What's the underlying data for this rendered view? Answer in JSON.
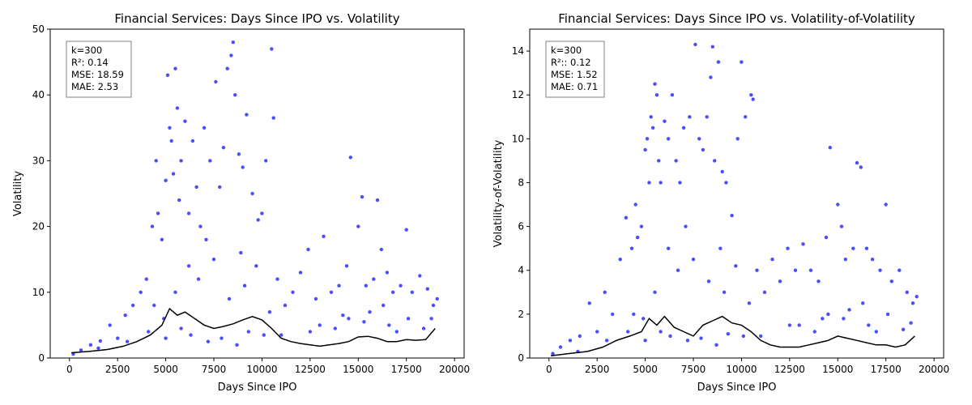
{
  "chart_data": [
    {
      "type": "scatter",
      "title": "Financial Services: Days Since IPO vs. Volatility",
      "xlabel": "Days Since IPO",
      "ylabel": "Volatility",
      "xlim": [
        -1000,
        20500
      ],
      "ylim": [
        0,
        50
      ],
      "xticks": [
        0,
        2500,
        5000,
        7500,
        10000,
        12500,
        15000,
        17500,
        20000
      ],
      "xtick_labels": [
        "0",
        "2500",
        "5000",
        "7500",
        "10000",
        "12500",
        "15000",
        "17500",
        "20000"
      ],
      "yticks": [
        0,
        10,
        20,
        30,
        40,
        50
      ],
      "ytick_labels": [
        "0",
        "10",
        "20",
        "30",
        "40",
        "50"
      ],
      "grid": false,
      "point_color": "#0000ff",
      "trend_color": "#000000",
      "stats_box": [
        "k=300",
        "R²: 0.14",
        "MSE: 18.59",
        "MAE: 2.53"
      ],
      "trend": {
        "x": [
          100,
          1000,
          2000,
          2800,
          3500,
          4200,
          4800,
          5200,
          5600,
          6000,
          6500,
          7000,
          7500,
          8000,
          8500,
          9000,
          9500,
          10000,
          10500,
          11000,
          11500,
          12000,
          12500,
          13000,
          13500,
          14000,
          14500,
          15000,
          15500,
          16000,
          16500,
          17000,
          17500,
          18000,
          18500,
          19000
        ],
        "y": [
          0.8,
          1.0,
          1.3,
          1.8,
          2.5,
          3.5,
          5.0,
          7.5,
          6.5,
          7.0,
          6.0,
          5.0,
          4.5,
          4.8,
          5.2,
          5.8,
          6.3,
          5.8,
          4.5,
          3.0,
          2.5,
          2.2,
          2.0,
          1.8,
          2.0,
          2.2,
          2.5,
          3.2,
          3.3,
          3.0,
          2.5,
          2.5,
          2.8,
          2.7,
          2.8,
          4.5
        ]
      },
      "points": {
        "x": [
          200,
          600,
          1100,
          1600,
          2100,
          2500,
          2900,
          3300,
          3700,
          4000,
          4300,
          4500,
          4600,
          4800,
          5000,
          5100,
          5200,
          5300,
          5400,
          5500,
          5600,
          5700,
          5800,
          6000,
          6200,
          6400,
          6600,
          6800,
          7000,
          7300,
          7600,
          7800,
          8000,
          8200,
          8400,
          8500,
          8600,
          8800,
          9000,
          9200,
          9500,
          9800,
          10000,
          10200,
          10500,
          10600,
          10800,
          11200,
          11600,
          12000,
          12400,
          12800,
          13200,
          13600,
          14000,
          14400,
          14600,
          15000,
          15200,
          15400,
          15800,
          16000,
          16200,
          16500,
          16800,
          17200,
          17500,
          17800,
          18200,
          18600,
          18900,
          19100,
          4400,
          5500,
          6200,
          7500,
          8300,
          9100,
          10400,
          12500,
          14500,
          15300,
          16300,
          17600,
          1500,
          3000,
          4100,
          4900,
          6700,
          7100,
          8900,
          9700,
          11000,
          13000,
          13800,
          14200,
          15600,
          16600,
          17000,
          18400,
          18800,
          5000,
          5800,
          6300,
          7200,
          7900,
          8700,
          9300,
          10100
        ],
        "y": [
          0.6,
          1.2,
          2.0,
          2.6,
          5.0,
          3.0,
          6.5,
          8.0,
          10.0,
          12.0,
          20.0,
          30.0,
          22.0,
          18.0,
          27.0,
          43.0,
          35.0,
          33.0,
          28.0,
          44.0,
          38.0,
          24.0,
          30.0,
          36.0,
          22.0,
          33.0,
          26.0,
          20.0,
          35.0,
          30.0,
          42.0,
          26.0,
          32.0,
          44.0,
          46.0,
          48.0,
          40.0,
          31.0,
          29.0,
          37.0,
          25.0,
          21.0,
          22.0,
          30.0,
          47.0,
          36.5,
          12.0,
          8.0,
          10.0,
          13.0,
          16.5,
          9.0,
          18.5,
          10.0,
          11.0,
          14.0,
          30.5,
          20.0,
          24.5,
          11.0,
          12.0,
          24.0,
          16.5,
          13.0,
          10.0,
          11.0,
          19.5,
          10.0,
          12.5,
          10.5,
          8.0,
          9.0,
          8.0,
          10.0,
          14.0,
          15.0,
          9.0,
          11.0,
          7.0,
          4.0,
          6.0,
          5.5,
          8.0,
          6.0,
          1.5,
          2.5,
          4.0,
          6.0,
          12.0,
          18.0,
          16.0,
          14.0,
          3.5,
          5.0,
          4.5,
          6.5,
          7.0,
          5.0,
          4.0,
          4.5,
          6.0,
          3.0,
          4.5,
          3.5,
          2.5,
          3.0,
          2.0,
          4.0,
          3.5
        ]
      }
    },
    {
      "type": "scatter",
      "title": "Financial Services: Days Since IPO vs. Volatility-of-Volatility",
      "xlabel": "Days Since IPO",
      "ylabel": "Volatility-of-Volatility",
      "xlim": [
        -1000,
        20500
      ],
      "ylim": [
        0,
        15
      ],
      "xticks": [
        0,
        2500,
        5000,
        7500,
        10000,
        12500,
        15000,
        17500,
        20000
      ],
      "xtick_labels": [
        "0",
        "2500",
        "5000",
        "7500",
        "10000",
        "12500",
        "15000",
        "17500",
        "20000"
      ],
      "yticks": [
        0,
        2,
        4,
        6,
        8,
        10,
        12,
        14
      ],
      "ytick_labels": [
        "0",
        "2",
        "4",
        "6",
        "8",
        "10",
        "12",
        "14"
      ],
      "grid": false,
      "point_color": "#0000ff",
      "trend_color": "#000000",
      "stats_box": [
        "k=300",
        "R²:: 0.12",
        "MSE: 1.52",
        "MAE: 0.71"
      ],
      "trend": {
        "x": [
          100,
          1000,
          2000,
          2800,
          3500,
          4200,
          4800,
          5200,
          5600,
          6000,
          6500,
          7000,
          7500,
          8000,
          8500,
          9000,
          9500,
          10000,
          10500,
          11000,
          11500,
          12000,
          12500,
          13000,
          13500,
          14000,
          14500,
          15000,
          15500,
          16000,
          16500,
          17000,
          17500,
          18000,
          18500,
          19000
        ],
        "y": [
          0.1,
          0.2,
          0.3,
          0.5,
          0.8,
          1.0,
          1.2,
          1.8,
          1.5,
          1.9,
          1.4,
          1.2,
          1.0,
          1.5,
          1.7,
          1.9,
          1.6,
          1.5,
          1.2,
          0.8,
          0.6,
          0.5,
          0.5,
          0.5,
          0.6,
          0.7,
          0.8,
          1.0,
          0.9,
          0.8,
          0.7,
          0.6,
          0.6,
          0.5,
          0.6,
          1.0
        ]
      },
      "points": {
        "x": [
          200,
          600,
          1100,
          1600,
          2100,
          2500,
          2900,
          3300,
          3700,
          4000,
          4300,
          4500,
          4600,
          4800,
          5000,
          5100,
          5200,
          5300,
          5400,
          5500,
          5600,
          5700,
          5800,
          6000,
          6200,
          6400,
          6600,
          6800,
          7000,
          7300,
          7600,
          7800,
          8000,
          8200,
          8400,
          8500,
          8600,
          8800,
          9000,
          9200,
          9500,
          9800,
          10000,
          10200,
          10500,
          10600,
          10800,
          11200,
          11600,
          12000,
          12400,
          12800,
          13200,
          13600,
          14000,
          14400,
          14600,
          15000,
          15200,
          15400,
          15800,
          16000,
          16200,
          16500,
          16800,
          17200,
          17500,
          17800,
          18200,
          18600,
          18900,
          19100,
          4400,
          5500,
          6200,
          7500,
          8300,
          9100,
          10400,
          12500,
          14500,
          15300,
          16300,
          17600,
          1500,
          3000,
          4100,
          4900,
          6700,
          7100,
          8900,
          9700,
          11000,
          13000,
          13800,
          14200,
          15600,
          16600,
          17000,
          18400,
          18800,
          5000,
          5800,
          6300,
          7200,
          7900,
          8700,
          9300,
          10100
        ],
        "y": [
          0.2,
          0.5,
          0.8,
          1.0,
          2.5,
          1.2,
          3.0,
          2.0,
          4.5,
          6.4,
          5.0,
          7.0,
          5.5,
          6.0,
          9.5,
          10.0,
          8.0,
          11.0,
          10.5,
          12.5,
          12.0,
          9.0,
          8.0,
          10.8,
          10.0,
          12.0,
          9.0,
          8.0,
          10.5,
          11.0,
          14.3,
          10.0,
          9.5,
          11.0,
          12.8,
          14.2,
          9.0,
          13.5,
          8.5,
          8.0,
          6.5,
          10.0,
          13.5,
          11.0,
          12.0,
          11.8,
          4.0,
          3.0,
          4.5,
          3.5,
          5.0,
          4.0,
          5.2,
          4.0,
          3.5,
          5.5,
          9.6,
          7.0,
          6.0,
          4.5,
          5.0,
          8.9,
          8.7,
          5.0,
          4.5,
          4.0,
          7.0,
          3.5,
          4.0,
          3.0,
          2.5,
          2.8,
          2.0,
          3.0,
          5.0,
          4.5,
          3.5,
          3.0,
          2.5,
          1.5,
          2.0,
          1.8,
          2.5,
          2.0,
          0.3,
          0.8,
          1.2,
          1.8,
          4.0,
          6.0,
          5.0,
          4.2,
          1.0,
          1.5,
          1.2,
          1.8,
          2.2,
          1.5,
          1.2,
          1.3,
          1.6,
          0.8,
          1.2,
          1.0,
          0.8,
          0.9,
          0.6,
          1.1,
          1.0
        ]
      }
    }
  ]
}
